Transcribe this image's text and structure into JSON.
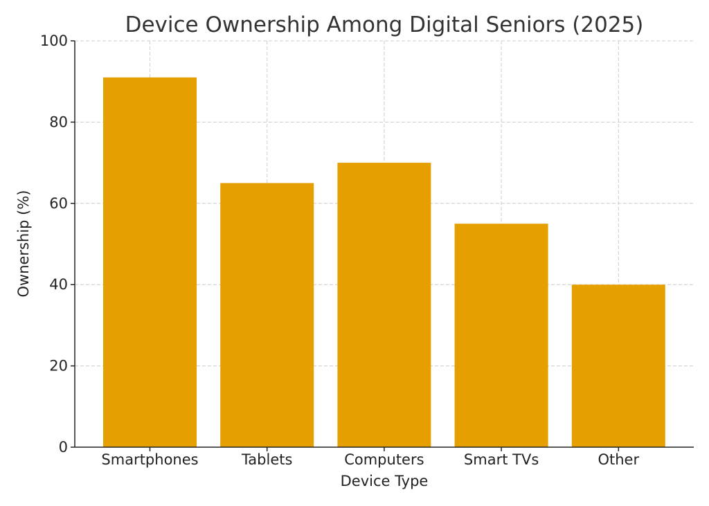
{
  "chart_data": {
    "type": "bar",
    "title": "Device Ownership Among Digital Seniors (2025)",
    "xlabel": "Device Type",
    "ylabel": "Ownership (%)",
    "categories": [
      "Smartphones",
      "Tablets",
      "Computers",
      "Smart TVs",
      "Other"
    ],
    "values": [
      91,
      65,
      70,
      55,
      40
    ],
    "ylim": [
      0,
      100
    ],
    "yticks": [
      0,
      20,
      40,
      60,
      80,
      100
    ],
    "bar_color": "#E69F00",
    "grid": true
  }
}
